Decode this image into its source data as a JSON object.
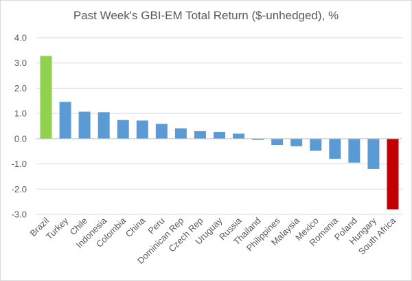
{
  "chart_data": {
    "type": "bar",
    "title": "Past Week's GBI-EM Total Return ($-unhedged), %",
    "xlabel": "",
    "ylabel": "",
    "ylim": [
      -3.0,
      4.0
    ],
    "yticks": [
      4.0,
      3.0,
      2.0,
      1.0,
      0.0,
      -1.0,
      -2.0,
      -3.0
    ],
    "ytick_labels": [
      "4.0",
      "3.0",
      "2.0",
      "1.0",
      "0.0",
      "-1.0",
      "-2.0",
      "-3.0"
    ],
    "grid": true,
    "legend": "none",
    "categories": [
      "Brazil",
      "Turkey",
      "Chile",
      "Indonesia",
      "Colombia",
      "China",
      "Peru",
      "Dominican Rep",
      "Czech Rep",
      "Uruguay",
      "Russia",
      "Thailand",
      "Philippines",
      "Malaysia",
      "Mexico",
      "Romania",
      "Poland",
      "Hungary",
      "South Africa"
    ],
    "values": [
      3.28,
      1.46,
      1.07,
      1.05,
      0.74,
      0.72,
      0.59,
      0.41,
      0.3,
      0.27,
      0.2,
      -0.05,
      -0.25,
      -0.3,
      -0.48,
      -0.8,
      -0.95,
      -1.2,
      -2.8
    ],
    "colors": {
      "default": "#5b9bd5",
      "highest": "#92d050",
      "lowest": "#c00000",
      "grid": "#d9d9d9",
      "axis": "#bfbfbf",
      "text": "#595959"
    }
  }
}
